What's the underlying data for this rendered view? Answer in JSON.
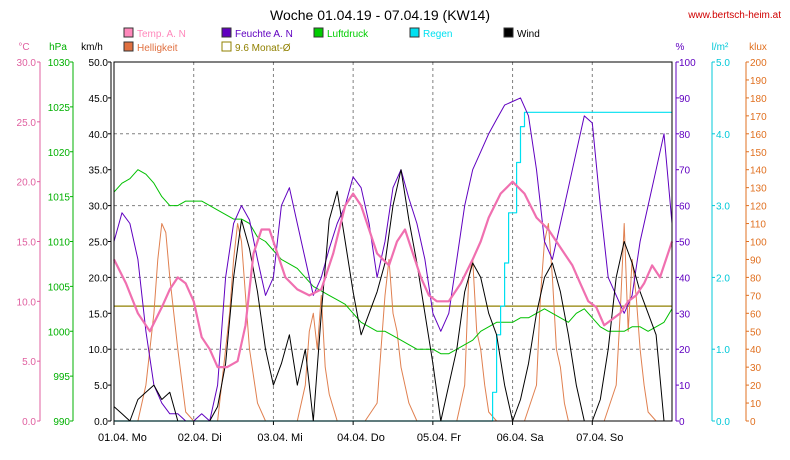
{
  "chart_data": {
    "type": "line",
    "title": "Woche 01.04.19 - 07.04.19 (KW14)",
    "website": "www.bertsch-heim.at",
    "x_labels": [
      "01.04.  Mo",
      "02.04.  Di",
      "03.04.  Mi",
      "04.04.  Do",
      "05.04.  Fr",
      "06.04.  Sa",
      "07.04.  So"
    ],
    "x_range": [
      0,
      7
    ],
    "axes": [
      {
        "id": "temp",
        "unit": "°C",
        "min": 0,
        "max": 30,
        "ticks": [
          "0.0",
          "5.0",
          "10.0",
          "15.0",
          "20.0",
          "25.0",
          "30.0"
        ],
        "color": "#e060a0"
      },
      {
        "id": "press",
        "unit": "hPa",
        "min": 990,
        "max": 1030,
        "ticks": [
          "990",
          "995",
          "1000",
          "1005",
          "1010",
          "1015",
          "1020",
          "1025",
          "1030"
        ],
        "color": "#00b000"
      },
      {
        "id": "wind",
        "unit": "km/h",
        "min": 0,
        "max": 50,
        "ticks": [
          "0.0",
          "5.0",
          "10.0",
          "15.0",
          "20.0",
          "25.0",
          "30.0",
          "35.0",
          "40.0",
          "45.0",
          "50.0"
        ],
        "color": "#000000"
      },
      {
        "id": "hum",
        "unit": "%",
        "min": 0,
        "max": 100,
        "ticks": [
          "0",
          "10",
          "20",
          "30",
          "40",
          "50",
          "60",
          "70",
          "80",
          "90",
          "100"
        ],
        "color": "#6000c0"
      },
      {
        "id": "rain",
        "unit": "l/m²",
        "min": 0,
        "max": 5,
        "ticks": [
          "0.0",
          "1.0",
          "2.0",
          "3.0",
          "4.0",
          "5.0"
        ],
        "color": "#00c8d8"
      },
      {
        "id": "lux",
        "unit": "klux",
        "min": 0,
        "max": 200,
        "ticks": [
          "0",
          "10",
          "20",
          "30",
          "40",
          "50",
          "60",
          "70",
          "80",
          "90",
          "100",
          "110",
          "120",
          "130",
          "140",
          "150",
          "160",
          "170",
          "180",
          "190",
          "200"
        ],
        "color": "#e07020"
      }
    ],
    "legend": [
      {
        "label": "Temp. A. N",
        "color": "#ff88bb"
      },
      {
        "label": "Feuchte A. N",
        "color": "#6000c0"
      },
      {
        "label": "Luftdruck",
        "color": "#00cc00"
      },
      {
        "label": "Regen",
        "color": "#00e0f0"
      },
      {
        "label": "Wind",
        "color": "#000000"
      },
      {
        "label": "Helligkeit",
        "color": "#e07040"
      },
      {
        "label": "9.6 Monat-Ø",
        "color": "#908000"
      }
    ],
    "monthly_avg_temp": 9.6,
    "series": [
      {
        "name": "Temp. A. N",
        "axis": "temp",
        "color": "#f070b0",
        "width": 2.2,
        "x": [
          0,
          0.15,
          0.3,
          0.45,
          0.6,
          0.7,
          0.8,
          0.9,
          1.0,
          1.1,
          1.2,
          1.3,
          1.42,
          1.55,
          1.65,
          1.75,
          1.85,
          1.95,
          2.05,
          2.15,
          2.3,
          2.45,
          2.6,
          2.75,
          2.9,
          3.0,
          3.1,
          3.2,
          3.3,
          3.45,
          3.55,
          3.65,
          3.75,
          3.85,
          3.95,
          4.05,
          4.2,
          4.35,
          4.5,
          4.6,
          4.7,
          4.85,
          5.0,
          5.15,
          5.3,
          5.45,
          5.55,
          5.65,
          5.75,
          5.85,
          5.95,
          6.05,
          6.15,
          6.25,
          6.35,
          6.45,
          6.55,
          6.65,
          6.75,
          6.85,
          7.0
        ],
        "values": [
          13.5,
          11.5,
          9,
          7.5,
          9.5,
          11,
          12,
          11.5,
          10,
          7,
          6,
          4.5,
          4.5,
          5,
          8,
          14,
          16,
          16,
          14,
          12,
          11,
          10.5,
          11,
          14,
          18,
          19,
          18,
          16,
          14,
          13,
          15,
          16,
          14,
          12,
          10.5,
          10,
          10,
          11.5,
          13.5,
          15,
          17,
          19,
          20,
          19,
          17,
          16,
          15,
          14,
          13,
          11.5,
          10,
          9.5,
          8,
          8.5,
          9,
          10,
          10.5,
          11.5,
          13,
          12,
          15
        ]
      },
      {
        "name": "Feuchte A. N",
        "axis": "hum",
        "color": "#6000c0",
        "width": 1,
        "x": [
          0,
          0.1,
          0.2,
          0.3,
          0.4,
          0.5,
          0.6,
          0.7,
          0.8,
          0.9,
          1.0,
          1.1,
          1.2,
          1.3,
          1.4,
          1.5,
          1.6,
          1.7,
          1.8,
          1.9,
          2.0,
          2.1,
          2.2,
          2.3,
          2.4,
          2.5,
          2.6,
          2.7,
          2.8,
          2.9,
          3.0,
          3.1,
          3.2,
          3.3,
          3.4,
          3.5,
          3.6,
          3.7,
          3.8,
          3.9,
          4.0,
          4.1,
          4.2,
          4.3,
          4.4,
          4.5,
          4.6,
          4.7,
          4.8,
          4.9,
          5.0,
          5.1,
          5.2,
          5.3,
          5.4,
          5.5,
          5.6,
          5.7,
          5.8,
          5.9,
          6.0,
          6.1,
          6.2,
          6.3,
          6.4,
          6.5,
          6.6,
          6.7,
          6.8,
          6.9,
          7.0
        ],
        "values": [
          50,
          58,
          55,
          45,
          25,
          10,
          5,
          2,
          2,
          0,
          0,
          2,
          0,
          10,
          40,
          55,
          60,
          56,
          45,
          35,
          40,
          60,
          65,
          55,
          45,
          35,
          40,
          48,
          55,
          60,
          68,
          65,
          55,
          40,
          50,
          65,
          70,
          62,
          55,
          45,
          30,
          25,
          30,
          45,
          60,
          70,
          75,
          80,
          84,
          88,
          89,
          90,
          85,
          70,
          50,
          45,
          55,
          65,
          75,
          85,
          83,
          60,
          40,
          35,
          30,
          35,
          50,
          60,
          70,
          80,
          55
        ]
      },
      {
        "name": "Luftdruck",
        "axis": "press",
        "color": "#00c000",
        "width": 1,
        "x": [
          0,
          0.1,
          0.2,
          0.3,
          0.4,
          0.5,
          0.6,
          0.7,
          0.8,
          0.9,
          1.0,
          1.1,
          1.2,
          1.3,
          1.4,
          1.5,
          1.6,
          1.7,
          1.8,
          1.9,
          2.0,
          2.1,
          2.2,
          2.3,
          2.4,
          2.5,
          2.6,
          2.7,
          2.8,
          2.9,
          3.0,
          3.1,
          3.2,
          3.3,
          3.4,
          3.5,
          3.6,
          3.7,
          3.8,
          3.9,
          4.0,
          4.1,
          4.2,
          4.3,
          4.4,
          4.5,
          4.6,
          4.7,
          4.8,
          4.9,
          5.0,
          5.1,
          5.2,
          5.3,
          5.4,
          5.5,
          5.6,
          5.7,
          5.8,
          5.9,
          6.0,
          6.1,
          6.2,
          6.3,
          6.4,
          6.5,
          6.6,
          6.7,
          6.8,
          6.9,
          7.0
        ],
        "values": [
          1015.5,
          1016.5,
          1017,
          1018,
          1017.5,
          1016.5,
          1015,
          1014,
          1014,
          1014.5,
          1014.5,
          1014.5,
          1014,
          1013.5,
          1013,
          1012.5,
          1012.5,
          1012,
          1010.5,
          1010,
          1009,
          1008,
          1007.5,
          1007,
          1006,
          1005,
          1004.5,
          1004,
          1003.5,
          1003,
          1002,
          1001,
          1000.5,
          1000,
          1000,
          999.5,
          999,
          998.5,
          998,
          998,
          998,
          997.5,
          997.5,
          998,
          998.5,
          999,
          1000,
          1000.5,
          1001,
          1001,
          1001,
          1001.5,
          1001.5,
          1002,
          1002.5,
          1002,
          1001.5,
          1001,
          1002,
          1002.5,
          1001.5,
          1000.5,
          1000,
          1000,
          1000,
          1000.5,
          1000.5,
          1000,
          1000.5,
          1001,
          1002.5
        ]
      },
      {
        "name": "Regen",
        "axis": "rain",
        "color": "#00e0f0",
        "width": 1.2,
        "step": true,
        "x": [
          0,
          4.7,
          4.75,
          4.8,
          4.85,
          4.9,
          4.95,
          5.0,
          5.05,
          5.1,
          5.15,
          5.2,
          7.0
        ],
        "values": [
          0,
          0,
          0.4,
          1.2,
          1.6,
          2.2,
          2.9,
          2.9,
          3.6,
          4.1,
          4.3,
          4.3,
          4.3
        ]
      },
      {
        "name": "Wind",
        "axis": "wind",
        "color": "#000000",
        "width": 1,
        "x": [
          0,
          0.1,
          0.2,
          0.3,
          0.4,
          0.5,
          0.6,
          0.7,
          0.8,
          0.9,
          1.0,
          1.1,
          1.2,
          1.3,
          1.4,
          1.5,
          1.6,
          1.7,
          1.8,
          1.9,
          2.0,
          2.1,
          2.2,
          2.3,
          2.4,
          2.5,
          2.6,
          2.7,
          2.8,
          2.9,
          3.0,
          3.1,
          3.2,
          3.3,
          3.4,
          3.5,
          3.6,
          3.7,
          3.8,
          3.9,
          4.0,
          4.1,
          4.2,
          4.3,
          4.4,
          4.5,
          4.6,
          4.7,
          4.8,
          4.9,
          5.0,
          5.1,
          5.2,
          5.3,
          5.4,
          5.5,
          5.6,
          5.7,
          5.8,
          5.9,
          6.0,
          6.1,
          6.2,
          6.3,
          6.4,
          6.5,
          6.6,
          6.7,
          6.8,
          6.9,
          7.0
        ],
        "values": [
          2,
          1,
          0,
          3,
          4,
          5,
          3,
          4,
          0,
          0,
          0,
          0,
          0,
          2,
          8,
          20,
          28,
          24,
          18,
          10,
          5,
          8,
          12,
          5,
          10,
          0,
          15,
          28,
          32,
          25,
          18,
          12,
          15,
          18,
          22,
          30,
          35,
          28,
          22,
          15,
          8,
          0,
          5,
          10,
          18,
          22,
          20,
          15,
          12,
          5,
          0,
          3,
          8,
          15,
          20,
          22,
          18,
          12,
          5,
          0,
          0,
          3,
          10,
          20,
          25,
          22,
          18,
          15,
          12,
          0,
          0
        ]
      },
      {
        "name": "Helligkeit",
        "axis": "lux",
        "color": "#e08050",
        "width": 1,
        "x": [
          0,
          0.15,
          0.3,
          0.4,
          0.5,
          0.55,
          0.6,
          0.65,
          0.7,
          0.8,
          0.9,
          1.0,
          1.15,
          1.3,
          1.35,
          1.45,
          1.5,
          1.55,
          1.6,
          1.65,
          1.7,
          1.8,
          1.9,
          2.0,
          2.15,
          2.3,
          2.4,
          2.45,
          2.5,
          2.55,
          2.6,
          2.65,
          2.7,
          2.8,
          2.9,
          3.0,
          3.15,
          3.3,
          3.35,
          3.4,
          3.45,
          3.5,
          3.55,
          3.6,
          3.7,
          3.8,
          3.9,
          4.0,
          4.15,
          4.3,
          4.4,
          4.45,
          4.5,
          4.55,
          4.6,
          4.65,
          4.7,
          4.8,
          4.9,
          5.0,
          5.15,
          5.3,
          5.35,
          5.4,
          5.45,
          5.5,
          5.55,
          5.6,
          5.65,
          5.7,
          5.8,
          5.9,
          6.0,
          6.15,
          6.3,
          6.35,
          6.4,
          6.45,
          6.5,
          6.55,
          6.6,
          6.65,
          6.7,
          6.8,
          6.9,
          7.0
        ],
        "values": [
          0,
          0,
          0,
          20,
          60,
          90,
          110,
          105,
          80,
          40,
          5,
          0,
          0,
          0,
          20,
          60,
          90,
          110,
          100,
          70,
          40,
          10,
          0,
          0,
          0,
          0,
          20,
          50,
          60,
          40,
          70,
          30,
          15,
          0,
          0,
          0,
          0,
          10,
          40,
          70,
          90,
          60,
          50,
          30,
          10,
          0,
          0,
          0,
          0,
          0,
          20,
          80,
          90,
          50,
          40,
          20,
          5,
          0,
          0,
          0,
          0,
          20,
          70,
          100,
          110,
          80,
          40,
          30,
          10,
          0,
          0,
          0,
          0,
          0,
          20,
          60,
          110,
          50,
          90,
          70,
          40,
          20,
          5,
          0,
          0,
          0
        ]
      }
    ]
  }
}
